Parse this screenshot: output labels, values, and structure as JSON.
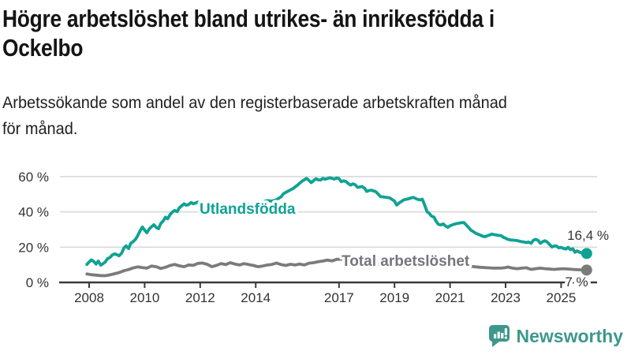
{
  "header": {
    "title_line1": "Högre arbetslöshet bland utrikes- än inrikesfödda i",
    "title_line2": "Ockelbo",
    "subtitle_line1": "Arbetssökande som andel av den registerbaserade arbetskraften månad",
    "subtitle_line2": "för månad."
  },
  "footer": {
    "brand": "Newsworthy"
  },
  "colors": {
    "accent": "#0fa294",
    "gray_line": "#7b7b7b",
    "gray_label": "#75757d",
    "brand": "#3e978c",
    "axis": "#3a3a3a",
    "grid": "#dadada",
    "tick_text": "#333333"
  },
  "chart_data": {
    "type": "line",
    "title": "Högre arbetslöshet bland utrikes- än inrikesfödda i Ockelbo",
    "subtitle": "Arbetssökande som andel av den registerbaserade arbetskraften månad för månad.",
    "xlabel": "",
    "ylabel": "",
    "grid": "horizontal",
    "legend_position": "inline-labels",
    "xlim": [
      2007.9,
      2026.3
    ],
    "ylim": [
      0,
      65
    ],
    "yticks": [
      {
        "value": 0,
        "label": "0 %"
      },
      {
        "value": 20,
        "label": "20 %"
      },
      {
        "value": 40,
        "label": "40 %"
      },
      {
        "value": 60,
        "label": "60 %"
      }
    ],
    "xticks": [
      {
        "value": 2008,
        "label": "2008"
      },
      {
        "value": 2010,
        "label": "2010"
      },
      {
        "value": 2012,
        "label": "2012"
      },
      {
        "value": 2014,
        "label": "2014"
      },
      {
        "value": 2017,
        "label": "2017"
      },
      {
        "value": 2019,
        "label": "2019"
      },
      {
        "value": 2021,
        "label": "2021"
      },
      {
        "value": 2023,
        "label": "2023"
      },
      {
        "value": 2025,
        "label": "2025"
      }
    ],
    "series": [
      {
        "name": "Utlandsfödda",
        "color": "#0fa294",
        "end_label": "16,4 %",
        "points": [
          [
            2007.92,
            10.2
          ],
          [
            2008.0,
            11.6
          ],
          [
            2008.08,
            12.8
          ],
          [
            2008.17,
            11.8
          ],
          [
            2008.25,
            10.4
          ],
          [
            2008.33,
            12.1
          ],
          [
            2008.42,
            9.8
          ],
          [
            2008.5,
            10.6
          ],
          [
            2008.58,
            11.6
          ],
          [
            2008.67,
            13.6
          ],
          [
            2008.75,
            14.1
          ],
          [
            2008.83,
            15.5
          ],
          [
            2008.92,
            16.2
          ],
          [
            2009.0,
            15.7
          ],
          [
            2009.08,
            15.1
          ],
          [
            2009.17,
            16.6
          ],
          [
            2009.25,
            19.4
          ],
          [
            2009.33,
            20.7
          ],
          [
            2009.42,
            19.2
          ],
          [
            2009.5,
            22.2
          ],
          [
            2009.58,
            23.1
          ],
          [
            2009.67,
            24.4
          ],
          [
            2009.75,
            26.5
          ],
          [
            2009.83,
            29.1
          ],
          [
            2009.92,
            31.4
          ],
          [
            2010.0,
            29.6
          ],
          [
            2010.08,
            28.2
          ],
          [
            2010.17,
            30.4
          ],
          [
            2010.25,
            31.6
          ],
          [
            2010.33,
            32.7
          ],
          [
            2010.42,
            31.1
          ],
          [
            2010.5,
            30.4
          ],
          [
            2010.58,
            33.4
          ],
          [
            2010.67,
            34.9
          ],
          [
            2010.75,
            37.0
          ],
          [
            2010.83,
            36.1
          ],
          [
            2010.92,
            38.6
          ],
          [
            2011.0,
            39.9
          ],
          [
            2011.08,
            40.8
          ],
          [
            2011.17,
            40.1
          ],
          [
            2011.25,
            42.3
          ],
          [
            2011.33,
            43.4
          ],
          [
            2011.42,
            44.6
          ],
          [
            2011.5,
            43.8
          ],
          [
            2011.58,
            44.1
          ],
          [
            2011.67,
            45.3
          ],
          [
            2011.75,
            44.6
          ],
          [
            2011.83,
            45.0
          ],
          [
            2011.92,
            45.6
          ],
          [
            2012.08,
            44.7
          ],
          [
            2012.25,
            43.6
          ],
          [
            2012.42,
            42.6
          ],
          [
            2012.58,
            42.2
          ],
          [
            2012.75,
            42.9
          ],
          [
            2012.92,
            43.4
          ],
          [
            2013.08,
            42.6
          ],
          [
            2013.25,
            42.1
          ],
          [
            2013.42,
            43.0
          ],
          [
            2013.58,
            43.9
          ],
          [
            2013.75,
            44.4
          ],
          [
            2013.92,
            44.1
          ],
          [
            2014.08,
            44.9
          ],
          [
            2014.25,
            45.6
          ],
          [
            2014.42,
            46.4
          ],
          [
            2014.58,
            46.1
          ],
          [
            2014.75,
            46.9
          ],
          [
            2014.92,
            48.6
          ],
          [
            2015.0,
            50.3
          ],
          [
            2015.17,
            51.8
          ],
          [
            2015.33,
            53.1
          ],
          [
            2015.5,
            55.1
          ],
          [
            2015.67,
            57.4
          ],
          [
            2015.83,
            59.0
          ],
          [
            2015.92,
            57.8
          ],
          [
            2016.0,
            56.6
          ],
          [
            2016.08,
            57.6
          ],
          [
            2016.17,
            58.8
          ],
          [
            2016.25,
            58.2
          ],
          [
            2016.33,
            58.0
          ],
          [
            2016.42,
            59.0
          ],
          [
            2016.5,
            58.5
          ],
          [
            2016.58,
            58.9
          ],
          [
            2016.67,
            59.3
          ],
          [
            2016.75,
            59.0
          ],
          [
            2016.83,
            58.6
          ],
          [
            2016.92,
            59.2
          ],
          [
            2017.0,
            58.9
          ],
          [
            2017.08,
            57.1
          ],
          [
            2017.17,
            57.6
          ],
          [
            2017.25,
            57.2
          ],
          [
            2017.33,
            56.1
          ],
          [
            2017.42,
            55.2
          ],
          [
            2017.5,
            55.9
          ],
          [
            2017.58,
            55.4
          ],
          [
            2017.67,
            53.9
          ],
          [
            2017.75,
            54.1
          ],
          [
            2017.83,
            54.4
          ],
          [
            2017.92,
            53.4
          ],
          [
            2018.0,
            51.6
          ],
          [
            2018.08,
            52.1
          ],
          [
            2018.17,
            52.3
          ],
          [
            2018.33,
            51.4
          ],
          [
            2018.5,
            48.6
          ],
          [
            2018.67,
            48.3
          ],
          [
            2018.83,
            47.9
          ],
          [
            2019.0,
            46.1
          ],
          [
            2019.08,
            43.9
          ],
          [
            2019.17,
            45.1
          ],
          [
            2019.33,
            46.8
          ],
          [
            2019.5,
            47.4
          ],
          [
            2019.67,
            48.2
          ],
          [
            2019.83,
            47.1
          ],
          [
            2019.92,
            46.8
          ],
          [
            2020.0,
            47.2
          ],
          [
            2020.08,
            44.1
          ],
          [
            2020.17,
            40.1
          ],
          [
            2020.25,
            39.2
          ],
          [
            2020.33,
            37.6
          ],
          [
            2020.42,
            37.1
          ],
          [
            2020.5,
            34.6
          ],
          [
            2020.58,
            32.9
          ],
          [
            2020.67,
            32.6
          ],
          [
            2020.75,
            33.2
          ],
          [
            2020.83,
            32.1
          ],
          [
            2020.92,
            31.2
          ],
          [
            2021.0,
            32.1
          ],
          [
            2021.08,
            32.6
          ],
          [
            2021.17,
            33.1
          ],
          [
            2021.25,
            33.4
          ],
          [
            2021.33,
            33.6
          ],
          [
            2021.42,
            33.9
          ],
          [
            2021.5,
            33.9
          ],
          [
            2021.58,
            32.6
          ],
          [
            2021.67,
            31.1
          ],
          [
            2021.75,
            29.6
          ],
          [
            2021.83,
            28.9
          ],
          [
            2021.92,
            27.9
          ],
          [
            2022.0,
            27.4
          ],
          [
            2022.08,
            26.9
          ],
          [
            2022.17,
            26.2
          ],
          [
            2022.25,
            25.9
          ],
          [
            2022.33,
            26.4
          ],
          [
            2022.42,
            26.9
          ],
          [
            2022.5,
            27.4
          ],
          [
            2022.58,
            27.1
          ],
          [
            2022.67,
            26.9
          ],
          [
            2022.75,
            26.6
          ],
          [
            2022.83,
            26.6
          ],
          [
            2022.92,
            25.6
          ],
          [
            2023.0,
            25.1
          ],
          [
            2023.08,
            24.4
          ],
          [
            2023.17,
            24.1
          ],
          [
            2023.33,
            23.9
          ],
          [
            2023.42,
            23.7
          ],
          [
            2023.5,
            23.4
          ],
          [
            2023.58,
            23.1
          ],
          [
            2023.67,
            22.9
          ],
          [
            2023.75,
            22.6
          ],
          [
            2023.83,
            22.9
          ],
          [
            2023.92,
            22.2
          ],
          [
            2024.0,
            23.9
          ],
          [
            2024.08,
            24.4
          ],
          [
            2024.17,
            23.9
          ],
          [
            2024.25,
            22.2
          ],
          [
            2024.33,
            23.1
          ],
          [
            2024.42,
            23.6
          ],
          [
            2024.5,
            22.9
          ],
          [
            2024.58,
            21.6
          ],
          [
            2024.67,
            20.1
          ],
          [
            2024.75,
            20.6
          ],
          [
            2024.83,
            20.7
          ],
          [
            2024.92,
            19.6
          ],
          [
            2025.0,
            19.9
          ],
          [
            2025.08,
            19.3
          ],
          [
            2025.17,
            18.9
          ],
          [
            2025.25,
            19.9
          ],
          [
            2025.33,
            18.6
          ],
          [
            2025.42,
            19.1
          ],
          [
            2025.5,
            17.1
          ],
          [
            2025.58,
            17.9
          ],
          [
            2025.67,
            17.1
          ],
          [
            2025.75,
            16.7
          ],
          [
            2025.92,
            16.4
          ]
        ]
      },
      {
        "name": "Total arbetslöshet",
        "color": "#7b7b7b",
        "end_label": "7 %",
        "points": [
          [
            2007.92,
            4.8
          ],
          [
            2008.08,
            4.4
          ],
          [
            2008.25,
            4.1
          ],
          [
            2008.42,
            3.9
          ],
          [
            2008.58,
            3.8
          ],
          [
            2008.75,
            4.3
          ],
          [
            2008.92,
            4.9
          ],
          [
            2009.08,
            5.6
          ],
          [
            2009.25,
            6.6
          ],
          [
            2009.42,
            7.3
          ],
          [
            2009.58,
            8.2
          ],
          [
            2009.75,
            8.8
          ],
          [
            2009.92,
            8.4
          ],
          [
            2010.08,
            8.1
          ],
          [
            2010.25,
            9.3
          ],
          [
            2010.42,
            8.9
          ],
          [
            2010.58,
            7.9
          ],
          [
            2010.75,
            8.6
          ],
          [
            2010.92,
            9.6
          ],
          [
            2011.08,
            10.2
          ],
          [
            2011.25,
            9.4
          ],
          [
            2011.42,
            8.9
          ],
          [
            2011.58,
            9.9
          ],
          [
            2011.75,
            9.7
          ],
          [
            2011.92,
            10.8
          ],
          [
            2012.08,
            11.0
          ],
          [
            2012.25,
            10.3
          ],
          [
            2012.42,
            8.9
          ],
          [
            2012.58,
            9.6
          ],
          [
            2012.75,
            10.7
          ],
          [
            2012.92,
            10.1
          ],
          [
            2013.08,
            11.2
          ],
          [
            2013.25,
            10.4
          ],
          [
            2013.42,
            9.9
          ],
          [
            2013.58,
            10.7
          ],
          [
            2013.75,
            10.1
          ],
          [
            2013.92,
            9.6
          ],
          [
            2014.08,
            8.9
          ],
          [
            2014.25,
            9.3
          ],
          [
            2014.42,
            9.9
          ],
          [
            2014.58,
            10.2
          ],
          [
            2014.75,
            11.0
          ],
          [
            2014.92,
            10.1
          ],
          [
            2015.08,
            9.6
          ],
          [
            2015.25,
            10.3
          ],
          [
            2015.42,
            9.9
          ],
          [
            2015.58,
            10.4
          ],
          [
            2015.75,
            9.9
          ],
          [
            2015.92,
            10.9
          ],
          [
            2016.08,
            11.2
          ],
          [
            2016.25,
            11.7
          ],
          [
            2016.42,
            12.1
          ],
          [
            2016.58,
            12.7
          ],
          [
            2016.75,
            12.2
          ],
          [
            2016.92,
            13.1
          ],
          [
            2017.08,
            13.2
          ],
          [
            2017.25,
            12.9
          ],
          [
            2017.42,
            12.6
          ],
          [
            2017.58,
            12.2
          ],
          [
            2017.75,
            11.9
          ],
          [
            2017.92,
            11.4
          ],
          [
            2018.08,
            11.0
          ],
          [
            2018.33,
            10.4
          ],
          [
            2018.58,
            10.0
          ],
          [
            2018.83,
            9.7
          ],
          [
            2019.08,
            9.4
          ],
          [
            2019.33,
            9.1
          ],
          [
            2019.58,
            9.0
          ],
          [
            2019.83,
            9.4
          ],
          [
            2020.08,
            10.1
          ],
          [
            2020.33,
            10.9
          ],
          [
            2020.58,
            11.2
          ],
          [
            2020.83,
            10.9
          ],
          [
            2021.08,
            10.4
          ],
          [
            2021.33,
            9.9
          ],
          [
            2021.58,
            9.4
          ],
          [
            2021.83,
            9.0
          ],
          [
            2022.08,
            8.6
          ],
          [
            2022.33,
            8.3
          ],
          [
            2022.58,
            8.1
          ],
          [
            2022.83,
            8.1
          ],
          [
            2023.0,
            8.4
          ],
          [
            2023.08,
            8.7
          ],
          [
            2023.25,
            8.1
          ],
          [
            2023.42,
            7.8
          ],
          [
            2023.58,
            8.1
          ],
          [
            2023.75,
            8.3
          ],
          [
            2023.92,
            7.4
          ],
          [
            2024.08,
            7.8
          ],
          [
            2024.25,
            8.1
          ],
          [
            2024.42,
            7.8
          ],
          [
            2024.58,
            7.6
          ],
          [
            2024.75,
            7.4
          ],
          [
            2024.92,
            7.6
          ],
          [
            2025.08,
            7.8
          ],
          [
            2025.25,
            7.6
          ],
          [
            2025.42,
            7.4
          ],
          [
            2025.58,
            7.2
          ],
          [
            2025.75,
            7.1
          ],
          [
            2025.92,
            7.0
          ]
        ]
      }
    ]
  }
}
